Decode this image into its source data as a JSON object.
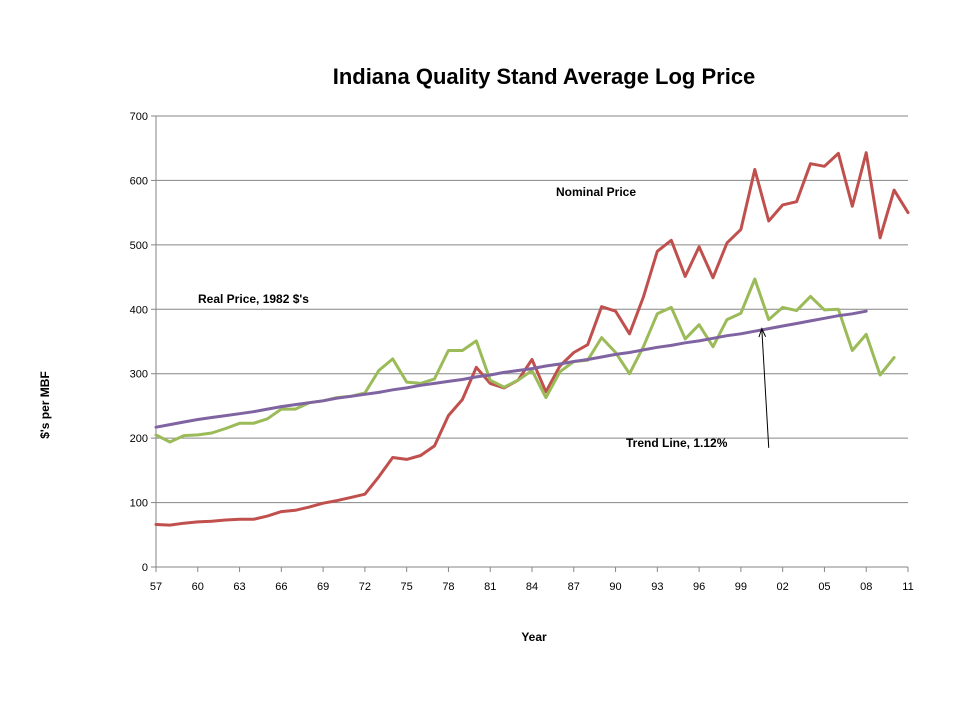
{
  "chart_data": {
    "type": "line",
    "title": "Indiana Quality Stand Average Log Price",
    "xlabel": "Year",
    "ylabel": "$'s per MBF",
    "ylim": [
      0,
      700
    ],
    "yticks": [
      0,
      100,
      200,
      300,
      400,
      500,
      600,
      700
    ],
    "xlim": [
      1957,
      2011
    ],
    "xtick_values": [
      1957,
      1960,
      1963,
      1966,
      1969,
      1972,
      1975,
      1978,
      1981,
      1984,
      1987,
      1990,
      1993,
      1996,
      1999,
      2002,
      2005,
      2008,
      2011
    ],
    "xtick_labels": [
      "57",
      "60",
      "63",
      "66",
      "69",
      "72",
      "75",
      "78",
      "81",
      "84",
      "87",
      "90",
      "93",
      "96",
      "99",
      "02",
      "05",
      "08",
      "11"
    ],
    "grid": "horizontal",
    "x": [
      1957,
      1958,
      1959,
      1960,
      1961,
      1962,
      1963,
      1964,
      1965,
      1966,
      1967,
      1968,
      1969,
      1970,
      1971,
      1972,
      1973,
      1974,
      1975,
      1976,
      1977,
      1978,
      1979,
      1980,
      1981,
      1982,
      1983,
      1984,
      1985,
      1986,
      1987,
      1988,
      1989,
      1990,
      1991,
      1992,
      1993,
      1994,
      1995,
      1996,
      1997,
      1998,
      1999,
      2000,
      2001,
      2002,
      2003,
      2004,
      2005,
      2006,
      2007,
      2008,
      2009,
      2010,
      2011
    ],
    "series": [
      {
        "key": "nominal",
        "color": "#c0504d",
        "values": [
          66,
          65,
          68,
          70,
          71,
          73,
          74,
          74,
          79,
          86,
          88,
          93,
          99,
          103,
          108,
          113,
          140,
          170,
          167,
          173,
          188,
          235,
          260,
          310,
          285,
          278,
          290,
          322,
          272,
          312,
          333,
          345,
          404,
          397,
          362,
          419,
          490,
          507,
          451,
          497,
          449,
          503,
          524,
          617,
          537,
          562,
          567,
          626,
          622,
          642,
          560,
          643,
          511,
          585,
          550
        ]
      },
      {
        "key": "real",
        "color": "#9bbb59",
        "values": [
          205,
          194,
          204,
          205,
          208,
          215,
          223,
          223,
          230,
          245,
          245,
          255,
          258,
          263,
          265,
          270,
          305,
          323,
          287,
          285,
          292,
          336,
          336,
          351,
          290,
          279,
          290,
          305,
          263,
          303,
          319,
          321,
          356,
          333,
          300,
          342,
          393,
          403,
          354,
          376,
          342,
          384,
          394,
          447,
          384,
          403,
          398,
          420,
          399,
          400,
          336,
          361,
          298,
          325,
          null
        ]
      },
      {
        "key": "trend",
        "color": "#8064a2",
        "values": [
          217,
          221,
          225,
          229,
          232,
          235,
          238,
          241,
          245,
          249,
          252,
          255,
          258,
          262,
          265,
          268,
          271,
          275,
          278,
          282,
          285,
          288,
          291,
          295,
          298,
          302,
          305,
          308,
          312,
          315,
          319,
          322,
          326,
          330,
          333,
          337,
          341,
          344,
          348,
          351,
          355,
          359,
          362,
          366,
          370,
          374,
          378,
          382,
          386,
          390,
          393,
          397,
          null,
          null,
          null
        ]
      }
    ],
    "annotations": {
      "nominal": "Nominal Price",
      "real": "Real Price, 1982 $'s",
      "trend": "Trend Line,  1.12%"
    },
    "arrow": {
      "from": [
        2001.0,
        185
      ],
      "to": [
        2000.5,
        370
      ]
    }
  }
}
